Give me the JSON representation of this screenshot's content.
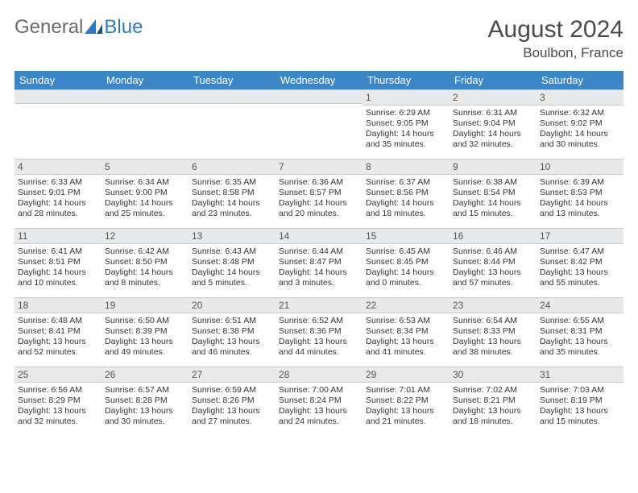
{
  "header": {
    "logo_general": "General",
    "logo_blue": "Blue",
    "month_title": "August 2024",
    "location": "Boulbon, France"
  },
  "colors": {
    "header_bg": "#3d86c6",
    "header_text": "#ffffff",
    "daynum_bg": "#e7e9ea",
    "border": "#c9cccf",
    "text": "#333333",
    "title": "#4a4a4a",
    "logo_gray": "#6a6a6a",
    "logo_blue": "#2f7abf",
    "logo_dark_blue": "#1c4f82"
  },
  "weekdays": [
    "Sunday",
    "Monday",
    "Tuesday",
    "Wednesday",
    "Thursday",
    "Friday",
    "Saturday"
  ],
  "weeks": [
    [
      null,
      null,
      null,
      null,
      {
        "d": "1",
        "sr": "6:29 AM",
        "ss": "9:05 PM",
        "dl": "14 hours and 35 minutes."
      },
      {
        "d": "2",
        "sr": "6:31 AM",
        "ss": "9:04 PM",
        "dl": "14 hours and 32 minutes."
      },
      {
        "d": "3",
        "sr": "6:32 AM",
        "ss": "9:02 PM",
        "dl": "14 hours and 30 minutes."
      }
    ],
    [
      {
        "d": "4",
        "sr": "6:33 AM",
        "ss": "9:01 PM",
        "dl": "14 hours and 28 minutes."
      },
      {
        "d": "5",
        "sr": "6:34 AM",
        "ss": "9:00 PM",
        "dl": "14 hours and 25 minutes."
      },
      {
        "d": "6",
        "sr": "6:35 AM",
        "ss": "8:58 PM",
        "dl": "14 hours and 23 minutes."
      },
      {
        "d": "7",
        "sr": "6:36 AM",
        "ss": "8:57 PM",
        "dl": "14 hours and 20 minutes."
      },
      {
        "d": "8",
        "sr": "6:37 AM",
        "ss": "8:56 PM",
        "dl": "14 hours and 18 minutes."
      },
      {
        "d": "9",
        "sr": "6:38 AM",
        "ss": "8:54 PM",
        "dl": "14 hours and 15 minutes."
      },
      {
        "d": "10",
        "sr": "6:39 AM",
        "ss": "8:53 PM",
        "dl": "14 hours and 13 minutes."
      }
    ],
    [
      {
        "d": "11",
        "sr": "6:41 AM",
        "ss": "8:51 PM",
        "dl": "14 hours and 10 minutes."
      },
      {
        "d": "12",
        "sr": "6:42 AM",
        "ss": "8:50 PM",
        "dl": "14 hours and 8 minutes."
      },
      {
        "d": "13",
        "sr": "6:43 AM",
        "ss": "8:48 PM",
        "dl": "14 hours and 5 minutes."
      },
      {
        "d": "14",
        "sr": "6:44 AM",
        "ss": "8:47 PM",
        "dl": "14 hours and 3 minutes."
      },
      {
        "d": "15",
        "sr": "6:45 AM",
        "ss": "8:45 PM",
        "dl": "14 hours and 0 minutes."
      },
      {
        "d": "16",
        "sr": "6:46 AM",
        "ss": "8:44 PM",
        "dl": "13 hours and 57 minutes."
      },
      {
        "d": "17",
        "sr": "6:47 AM",
        "ss": "8:42 PM",
        "dl": "13 hours and 55 minutes."
      }
    ],
    [
      {
        "d": "18",
        "sr": "6:48 AM",
        "ss": "8:41 PM",
        "dl": "13 hours and 52 minutes."
      },
      {
        "d": "19",
        "sr": "6:50 AM",
        "ss": "8:39 PM",
        "dl": "13 hours and 49 minutes."
      },
      {
        "d": "20",
        "sr": "6:51 AM",
        "ss": "8:38 PM",
        "dl": "13 hours and 46 minutes."
      },
      {
        "d": "21",
        "sr": "6:52 AM",
        "ss": "8:36 PM",
        "dl": "13 hours and 44 minutes."
      },
      {
        "d": "22",
        "sr": "6:53 AM",
        "ss": "8:34 PM",
        "dl": "13 hours and 41 minutes."
      },
      {
        "d": "23",
        "sr": "6:54 AM",
        "ss": "8:33 PM",
        "dl": "13 hours and 38 minutes."
      },
      {
        "d": "24",
        "sr": "6:55 AM",
        "ss": "8:31 PM",
        "dl": "13 hours and 35 minutes."
      }
    ],
    [
      {
        "d": "25",
        "sr": "6:56 AM",
        "ss": "8:29 PM",
        "dl": "13 hours and 32 minutes."
      },
      {
        "d": "26",
        "sr": "6:57 AM",
        "ss": "8:28 PM",
        "dl": "13 hours and 30 minutes."
      },
      {
        "d": "27",
        "sr": "6:59 AM",
        "ss": "8:26 PM",
        "dl": "13 hours and 27 minutes."
      },
      {
        "d": "28",
        "sr": "7:00 AM",
        "ss": "8:24 PM",
        "dl": "13 hours and 24 minutes."
      },
      {
        "d": "29",
        "sr": "7:01 AM",
        "ss": "8:22 PM",
        "dl": "13 hours and 21 minutes."
      },
      {
        "d": "30",
        "sr": "7:02 AM",
        "ss": "8:21 PM",
        "dl": "13 hours and 18 minutes."
      },
      {
        "d": "31",
        "sr": "7:03 AM",
        "ss": "8:19 PM",
        "dl": "13 hours and 15 minutes."
      }
    ]
  ],
  "labels": {
    "sunrise": "Sunrise:",
    "sunset": "Sunset:",
    "daylight": "Daylight:"
  }
}
